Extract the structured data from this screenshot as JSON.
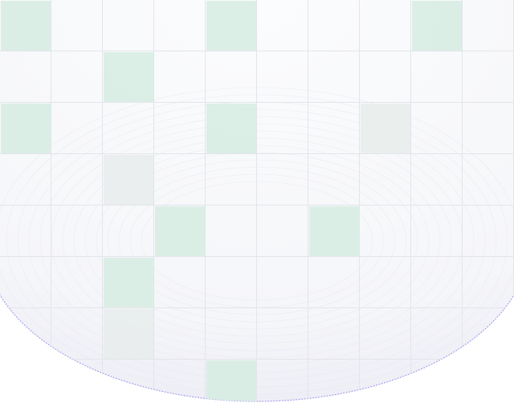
{
  "grid": {
    "rows": 8,
    "cols": 10,
    "highlighted_cells": [
      {
        "row": 0,
        "col": 0,
        "tint": "green"
      },
      {
        "row": 0,
        "col": 4,
        "tint": "green"
      },
      {
        "row": 0,
        "col": 8,
        "tint": "green"
      },
      {
        "row": 1,
        "col": 2,
        "tint": "green"
      },
      {
        "row": 2,
        "col": 0,
        "tint": "green"
      },
      {
        "row": 2,
        "col": 4,
        "tint": "green"
      },
      {
        "row": 2,
        "col": 7,
        "tint": "gray"
      },
      {
        "row": 3,
        "col": 2,
        "tint": "gray"
      },
      {
        "row": 4,
        "col": 3,
        "tint": "green"
      },
      {
        "row": 4,
        "col": 6,
        "tint": "green"
      },
      {
        "row": 5,
        "col": 2,
        "tint": "green"
      },
      {
        "row": 6,
        "col": 2,
        "tint": "gray"
      },
      {
        "row": 7,
        "col": 4,
        "tint": "green"
      }
    ]
  },
  "colors": {
    "background": "#ffffff",
    "dome_fill": "#f7f8fb",
    "dome_edge": "#8f86e6",
    "grid_line": "#e3e5ea",
    "cell_green": "#d6ece2",
    "cell_gray": "#e6ebea"
  }
}
